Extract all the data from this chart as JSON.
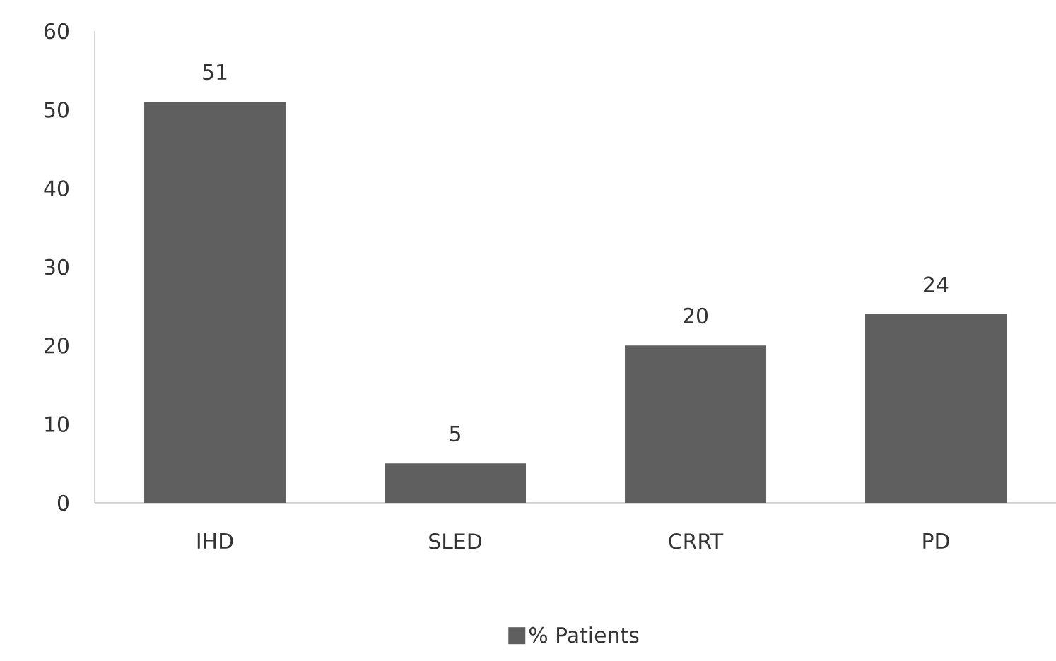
{
  "chart_data": {
    "type": "bar",
    "categories": [
      "IHD",
      "SLED",
      "CRRT",
      "PD"
    ],
    "series": [
      {
        "name": "% Patients",
        "color": "#5f5f5f",
        "values": [
          51,
          5,
          20,
          24
        ]
      }
    ],
    "ylim": [
      0,
      60
    ],
    "yticks": [
      0,
      10,
      20,
      30,
      40,
      50,
      60
    ],
    "data_labels": true,
    "grid": false,
    "legend": "bottom"
  }
}
